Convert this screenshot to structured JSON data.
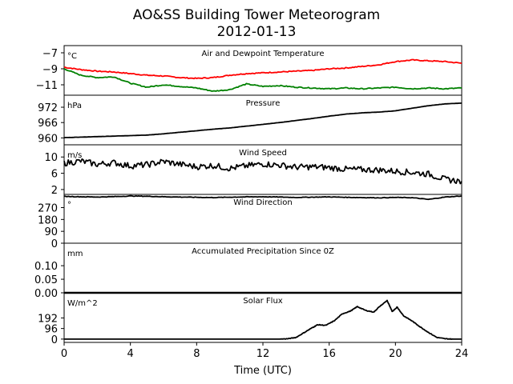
{
  "figure": {
    "title": "AO&SS Building Tower Meteorogram",
    "subtitle": "2012-01-13",
    "xlabel": "Time (UTC)",
    "xticks": [
      "0",
      "4",
      "8",
      "12",
      "16",
      "20",
      "24"
    ]
  },
  "chart_data": [
    {
      "type": "line",
      "title": "Air and Dewpoint Temperature",
      "unit": "°C",
      "yticks": [
        "−7",
        "−9",
        "−11"
      ],
      "ylim": [
        -12.3,
        -6.1
      ],
      "grid": false,
      "series": [
        {
          "color": "#ff0000",
          "x": [
            0,
            1,
            2,
            3,
            4,
            5,
            6,
            7,
            8,
            9,
            10,
            11,
            12,
            13,
            14,
            15,
            16,
            17,
            18,
            19,
            20,
            21,
            22,
            23,
            24
          ],
          "values": [
            -8.8,
            -9.1,
            -9.3,
            -9.4,
            -9.6,
            -9.8,
            -9.9,
            -10.1,
            -10.2,
            -10.1,
            -9.8,
            -9.6,
            -9.5,
            -9.4,
            -9.3,
            -9.2,
            -9.0,
            -8.9,
            -8.7,
            -8.5,
            -8.1,
            -7.9,
            -8.0,
            -8.1,
            -8.3
          ]
        },
        {
          "color": "#008000",
          "x": [
            0,
            1,
            2,
            3,
            4,
            5,
            6,
            7,
            8,
            9,
            10,
            11,
            12,
            13,
            14,
            15,
            16,
            17,
            18,
            19,
            20,
            21,
            22,
            23,
            24
          ],
          "values": [
            -9.0,
            -9.8,
            -10.1,
            -10.0,
            -10.8,
            -11.3,
            -11.0,
            -11.2,
            -11.4,
            -11.8,
            -11.6,
            -10.9,
            -11.2,
            -11.1,
            -11.3,
            -11.4,
            -11.5,
            -11.4,
            -11.5,
            -11.4,
            -11.3,
            -11.5,
            -11.4,
            -11.5,
            -11.4
          ]
        }
      ]
    },
    {
      "type": "line",
      "title": "Pressure",
      "unit": "hPa",
      "yticks": [
        "972",
        "966",
        "960"
      ],
      "ylim": [
        957.3,
        976.7
      ],
      "grid": false,
      "series": [
        {
          "color": "#000000",
          "x": [
            0,
            1,
            2,
            3,
            4,
            5,
            6,
            7,
            8,
            9,
            10,
            11,
            12,
            13,
            14,
            15,
            16,
            17,
            18,
            19,
            20,
            21,
            22,
            23,
            24
          ],
          "values": [
            960.1,
            960.3,
            960.5,
            960.7,
            960.9,
            961.1,
            961.6,
            962.2,
            962.8,
            963.4,
            963.9,
            964.6,
            965.3,
            966.0,
            966.8,
            967.6,
            968.5,
            969.3,
            969.8,
            970.1,
            970.6,
            971.6,
            972.6,
            973.3,
            973.6
          ]
        }
      ]
    },
    {
      "type": "line",
      "title": "Wind Speed",
      "unit": "m/s",
      "yticks": [
        "10",
        "6",
        "2"
      ],
      "ylim": [
        0.8,
        13.0
      ],
      "grid": false,
      "series": [
        {
          "color": "#000000",
          "x": [
            0,
            1,
            2,
            3,
            4,
            5,
            6,
            7,
            8,
            9,
            10,
            11,
            12,
            13,
            14,
            15,
            16,
            17,
            18,
            19,
            20,
            21,
            22,
            23,
            24
          ],
          "values": [
            8.5,
            9.0,
            8.2,
            8.6,
            7.8,
            8.1,
            8.9,
            8.2,
            7.6,
            7.9,
            7.2,
            7.8,
            8.3,
            8.0,
            7.5,
            7.6,
            7.4,
            7.0,
            6.9,
            6.8,
            6.5,
            6.2,
            5.8,
            4.5,
            4.0
          ]
        }
      ]
    },
    {
      "type": "line",
      "title": "Wind Direction",
      "unit": "°",
      "yticks": [
        "270",
        "180",
        "90",
        "0"
      ],
      "ylim": [
        0,
        370
      ],
      "grid": false,
      "series": [
        {
          "color": "#000000",
          "x": [
            0,
            1,
            2,
            3,
            4,
            5,
            6,
            7,
            8,
            9,
            10,
            11,
            12,
            13,
            14,
            15,
            16,
            17,
            18,
            19,
            20,
            21,
            22,
            23,
            24
          ],
          "values": [
            355,
            352,
            350,
            353,
            358,
            356,
            352,
            350,
            348,
            346,
            349,
            351,
            352,
            350,
            347,
            349,
            351,
            348,
            346,
            344,
            347,
            345,
            332,
            350,
            358
          ]
        }
      ]
    },
    {
      "type": "line",
      "title": "Accumulated Precipitation Since 0Z",
      "unit": "mm",
      "yticks": [
        "0.10",
        "0.05",
        "0.00"
      ],
      "ylim": [
        0,
        0.183
      ],
      "grid": false,
      "series": [
        {
          "color": "#000000",
          "x": [
            0,
            24
          ],
          "values": [
            0,
            0
          ]
        }
      ]
    },
    {
      "type": "line",
      "title": "Solar Flux",
      "unit": "W/m^2",
      "yticks": [
        "192",
        "96",
        "0"
      ],
      "ylim": [
        -30,
        420
      ],
      "grid": false,
      "series": [
        {
          "color": "#000000",
          "x": [
            0,
            1,
            2,
            3,
            4,
            5,
            6,
            7,
            8,
            9,
            10,
            11,
            12,
            13,
            13.5,
            14,
            14.5,
            15,
            15.3,
            15.8,
            16.3,
            16.8,
            17.3,
            17.7,
            18.2,
            18.7,
            19.0,
            19.5,
            19.8,
            20.1,
            20.5,
            21.0,
            21.5,
            22.0,
            22.5,
            23.0,
            23.5,
            24
          ],
          "values": [
            0,
            0,
            0,
            0,
            0,
            0,
            0,
            0,
            0,
            0,
            0,
            0,
            0,
            0,
            3,
            15,
            60,
            105,
            130,
            125,
            165,
            230,
            255,
            295,
            260,
            245,
            290,
            350,
            250,
            290,
            210,
            165,
            110,
            60,
            15,
            3,
            0,
            0
          ]
        }
      ]
    }
  ]
}
